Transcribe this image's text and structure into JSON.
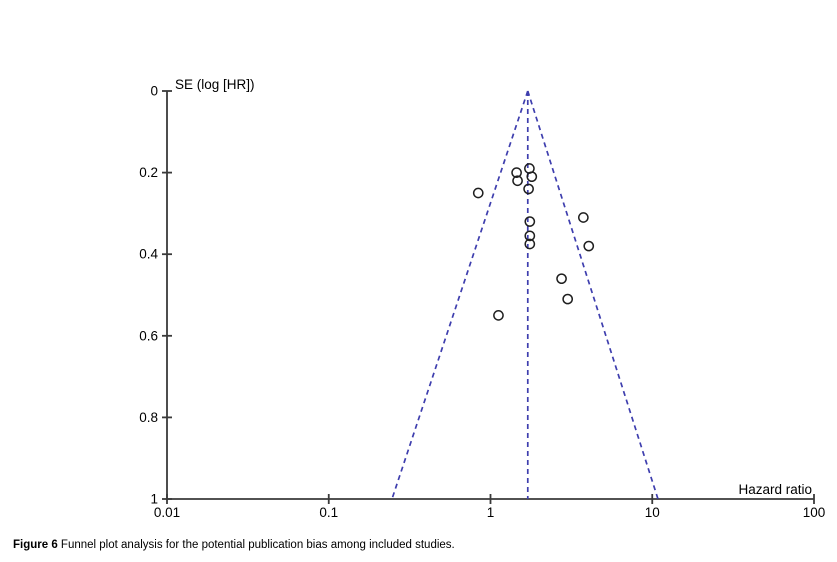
{
  "caption": {
    "label": "Figure 6",
    "text": " Funnel plot analysis for the potential publication bias among included studies."
  },
  "chart_data": {
    "type": "scatter",
    "subtype": "funnel-plot",
    "title": "",
    "xlabel": "Hazard ratio",
    "ylabel": "SE (log [HR])",
    "x_scale": "log",
    "xlim": [
      0.01,
      100
    ],
    "ylim": [
      0,
      1
    ],
    "y_inverted": true,
    "grid": false,
    "x_ticks": {
      "values": [
        0.01,
        0.1,
        1,
        10,
        100
      ],
      "labels": [
        "0.01",
        "0.1",
        "1",
        "10",
        "100"
      ]
    },
    "y_ticks": {
      "values": [
        0,
        0.2,
        0.4,
        0.6,
        0.8,
        1
      ],
      "labels": [
        "0",
        "0.2",
        "0.4",
        "0.6",
        "0.8",
        "1"
      ]
    },
    "points": [
      {
        "hr": 0.84,
        "se": 0.25
      },
      {
        "hr": 1.45,
        "se": 0.2
      },
      {
        "hr": 1.47,
        "se": 0.22
      },
      {
        "hr": 1.74,
        "se": 0.19
      },
      {
        "hr": 1.8,
        "se": 0.21
      },
      {
        "hr": 1.72,
        "se": 0.24
      },
      {
        "hr": 1.75,
        "se": 0.32
      },
      {
        "hr": 1.75,
        "se": 0.355
      },
      {
        "hr": 1.75,
        "se": 0.375
      },
      {
        "hr": 3.75,
        "se": 0.31
      },
      {
        "hr": 4.05,
        "se": 0.38
      },
      {
        "hr": 2.75,
        "se": 0.46
      },
      {
        "hr": 3.0,
        "se": 0.51
      },
      {
        "hr": 1.12,
        "se": 0.55
      }
    ],
    "funnel": {
      "center_hr": 1.7,
      "apex_se": 0,
      "base_se": 1,
      "left_base_hr": 0.246,
      "right_base_hr": 10.85
    },
    "colors": {
      "funnel_line": "#3e3eae",
      "point_stroke": "#1f1f1f",
      "axis": "#3a3a3a",
      "text": "#000000"
    }
  }
}
